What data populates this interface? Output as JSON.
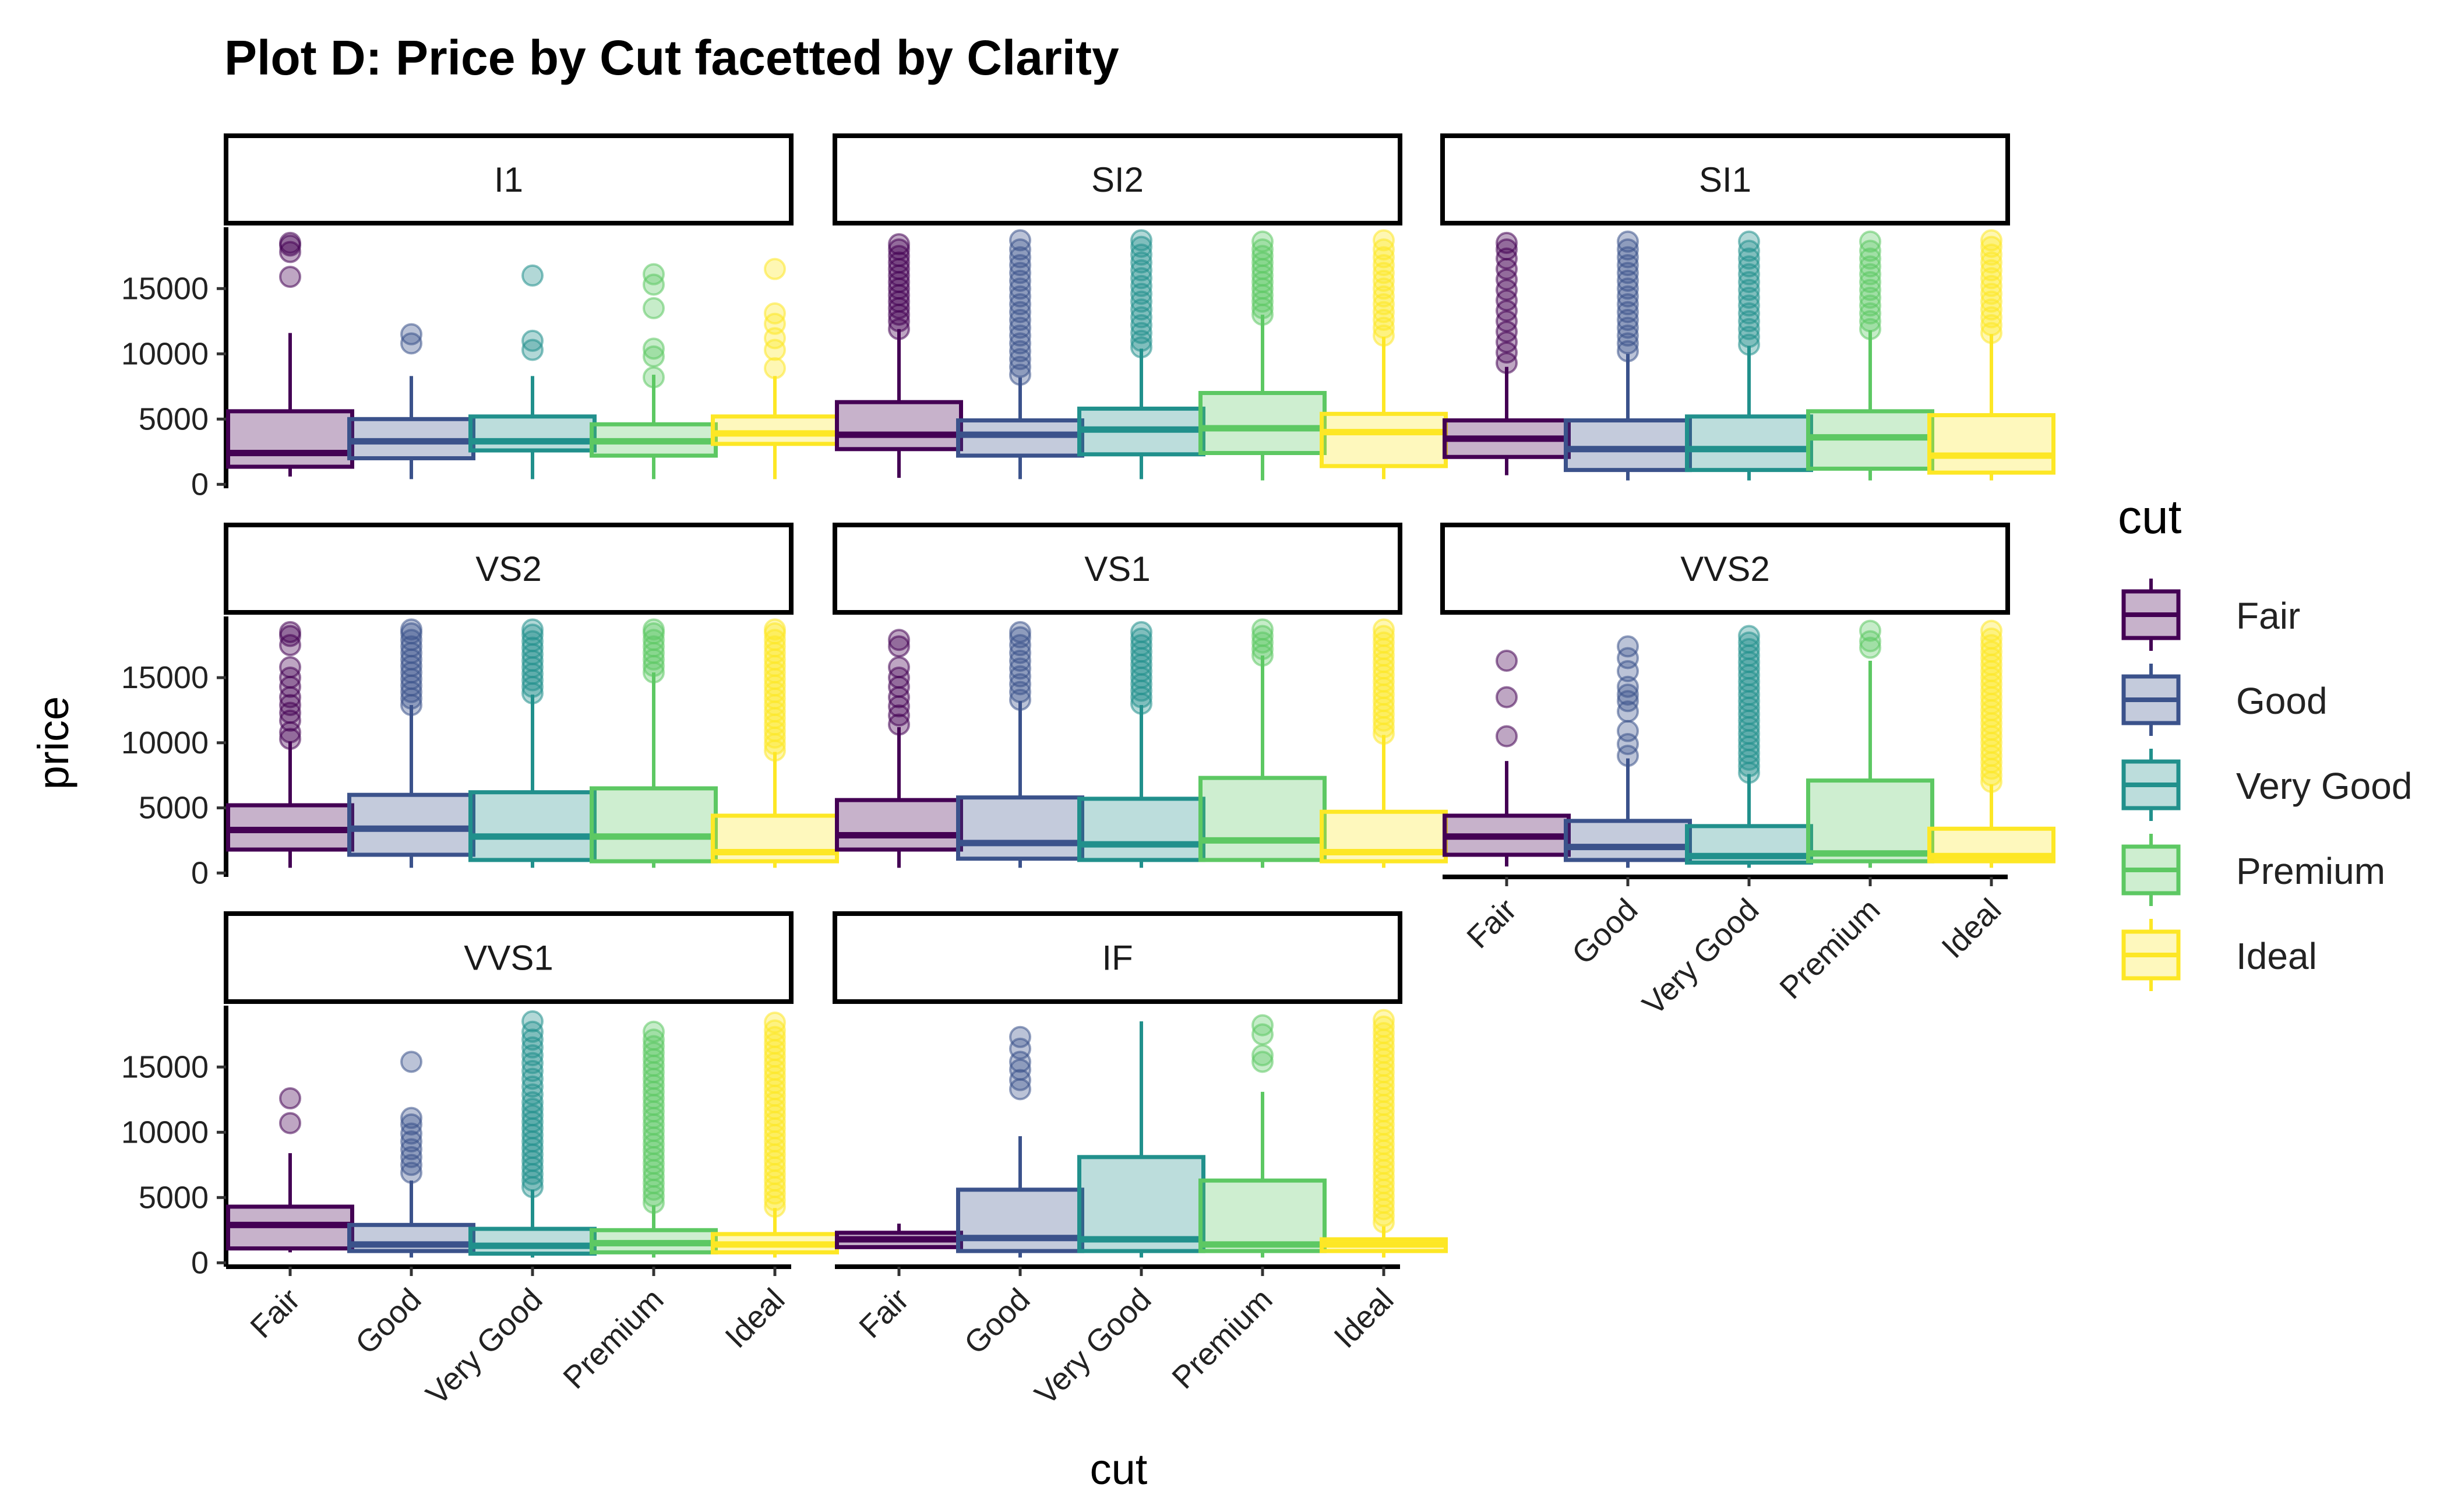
{
  "chart_data": {
    "type": "boxplot",
    "title": "Plot D: Price by Cut facetted by Clarity",
    "xlabel": "cut",
    "ylabel": "price",
    "categories": [
      "Fair",
      "Good",
      "Very Good",
      "Premium",
      "Ideal"
    ],
    "y_ticks": [
      0,
      5000,
      10000,
      15000
    ],
    "ylim": [
      -300,
      19700
    ],
    "legend": {
      "title": "cut",
      "position": "right",
      "entries": [
        "Fair",
        "Good",
        "Very Good",
        "Premium",
        "Ideal"
      ]
    },
    "colors": {
      "Fair": "#440154",
      "Good": "#3b528b",
      "Very Good": "#21908c",
      "Premium": "#5dc863",
      "Ideal": "#fde725"
    },
    "facets": [
      {
        "label": "I1",
        "boxes": [
          {
            "cut": "Fair",
            "min": 600,
            "q1": 1350,
            "median": 2400,
            "q3": 5600,
            "max": 11600,
            "outliers": [
              15900,
              17800,
              18300,
              18500
            ]
          },
          {
            "cut": "Good",
            "min": 400,
            "q1": 2000,
            "median": 3300,
            "q3": 5000,
            "max": 8300,
            "outliers": [
              10800,
              11500
            ]
          },
          {
            "cut": "Very Good",
            "min": 400,
            "q1": 2600,
            "median": 3300,
            "q3": 5200,
            "max": 8300,
            "outliers": [
              10300,
              11000,
              16000
            ]
          },
          {
            "cut": "Premium",
            "min": 400,
            "q1": 2200,
            "median": 3300,
            "q3": 4600,
            "max": 8400,
            "outliers": [
              8200,
              9800,
              10400,
              13500,
              15300,
              16100
            ]
          },
          {
            "cut": "Ideal",
            "min": 400,
            "q1": 3100,
            "median": 3900,
            "q3": 5200,
            "max": 8300,
            "outliers": [
              8900,
              10300,
              11200,
              12300,
              13100,
              16500
            ]
          }
        ]
      },
      {
        "label": "SI2",
        "boxes": [
          {
            "cut": "Fair",
            "min": 500,
            "q1": 2700,
            "median": 3800,
            "q3": 6300,
            "max": 11900,
            "outliers": [
              11900,
              12500,
              13000,
              13500,
              14000,
              14500,
              15000,
              15500,
              16000,
              16500,
              17000,
              17500,
              18000,
              18400
            ]
          },
          {
            "cut": "Good",
            "min": 400,
            "q1": 2200,
            "median": 3800,
            "q3": 4900,
            "max": 8200,
            "outliers": [
              8400,
              9000,
              9600,
              10200,
              10800,
              11400,
              12000,
              12600,
              13200,
              13800,
              14400,
              15000,
              15600,
              16200,
              16800,
              17400,
              18000,
              18700
            ]
          },
          {
            "cut": "Very Good",
            "min": 400,
            "q1": 2300,
            "median": 4200,
            "q3": 5800,
            "max": 10400,
            "outliers": [
              10500,
              11000,
              11600,
              12200,
              12800,
              13400,
              14000,
              14600,
              15200,
              15800,
              16400,
              17000,
              17600,
              18200,
              18700
            ]
          },
          {
            "cut": "Premium",
            "min": 300,
            "q1": 2400,
            "median": 4300,
            "q3": 7000,
            "max": 13000,
            "outliers": [
              13000,
              13500,
              14000,
              14500,
              15000,
              15500,
              16000,
              16500,
              17000,
              17500,
              18000,
              18600
            ]
          },
          {
            "cut": "Ideal",
            "min": 400,
            "q1": 1400,
            "median": 4000,
            "q3": 5400,
            "max": 11300,
            "outliers": [
              11400,
              12000,
              12600,
              13200,
              13800,
              14400,
              15000,
              15600,
              16200,
              16800,
              17400,
              18000,
              18700
            ]
          }
        ]
      },
      {
        "label": "SI1",
        "boxes": [
          {
            "cut": "Fair",
            "min": 700,
            "q1": 2100,
            "median": 3500,
            "q3": 4900,
            "max": 9000,
            "outliers": [
              9300,
              10100,
              10900,
              11700,
              12500,
              13300,
              14100,
              14900,
              15700,
              16500,
              17300,
              18000,
              18500
            ]
          },
          {
            "cut": "Good",
            "min": 300,
            "q1": 1100,
            "median": 2700,
            "q3": 4900,
            "max": 10000,
            "outliers": [
              10200,
              10800,
              11400,
              12000,
              12600,
              13200,
              13800,
              14400,
              15000,
              15600,
              16200,
              16800,
              17400,
              18000,
              18600
            ]
          },
          {
            "cut": "Very Good",
            "min": 300,
            "q1": 1100,
            "median": 2700,
            "q3": 5200,
            "max": 10600,
            "outliers": [
              10700,
              11300,
              11900,
              12500,
              13100,
              13700,
              14300,
              14900,
              15500,
              16100,
              16700,
              17300,
              17900,
              18600
            ]
          },
          {
            "cut": "Premium",
            "min": 300,
            "q1": 1200,
            "median": 3600,
            "q3": 5600,
            "max": 11800,
            "outliers": [
              11900,
              12500,
              13100,
              13700,
              14300,
              14900,
              15500,
              16100,
              16700,
              17300,
              17900,
              18600
            ]
          },
          {
            "cut": "Ideal",
            "min": 300,
            "q1": 900,
            "median": 2200,
            "q3": 5300,
            "max": 11500,
            "outliers": [
              11600,
              12200,
              12800,
              13400,
              14000,
              14600,
              15200,
              15800,
              16400,
              17000,
              17600,
              18200,
              18700
            ]
          }
        ]
      },
      {
        "label": "VS2",
        "boxes": [
          {
            "cut": "Fair",
            "min": 400,
            "q1": 1800,
            "median": 3300,
            "q3": 5200,
            "max": 10100,
            "outliers": [
              10300,
              10800,
              11700,
              12300,
              12900,
              13500,
              14300,
              15000,
              15800,
              17500,
              18200,
              18500
            ]
          },
          {
            "cut": "Good",
            "min": 400,
            "q1": 1400,
            "median": 3400,
            "q3": 6000,
            "max": 12900,
            "outliers": [
              12900,
              13400,
              13900,
              14400,
              14900,
              15400,
              15900,
              16400,
              16900,
              17400,
              17900,
              18400,
              18700
            ]
          },
          {
            "cut": "Very Good",
            "min": 400,
            "q1": 1000,
            "median": 2800,
            "q3": 6200,
            "max": 13700,
            "outliers": [
              13800,
              14300,
              14800,
              15300,
              15800,
              16300,
              16800,
              17300,
              17800,
              18300,
              18700
            ]
          },
          {
            "cut": "Premium",
            "min": 400,
            "q1": 900,
            "median": 2800,
            "q3": 6500,
            "max": 15400,
            "outliers": [
              15400,
              15900,
              16400,
              16900,
              17400,
              17900,
              18400,
              18700
            ]
          },
          {
            "cut": "Ideal",
            "min": 400,
            "q1": 900,
            "median": 1600,
            "q3": 4400,
            "max": 9300,
            "outliers": [
              9400,
              9900,
              10400,
              10900,
              11400,
              11900,
              12400,
              12900,
              13400,
              13900,
              14400,
              14900,
              15400,
              15900,
              16400,
              16900,
              17400,
              17900,
              18400,
              18700
            ]
          }
        ]
      },
      {
        "label": "VS1",
        "boxes": [
          {
            "cut": "Fair",
            "min": 400,
            "q1": 1800,
            "median": 2900,
            "q3": 5600,
            "max": 11200,
            "outliers": [
              11400,
              12100,
              12800,
              13500,
              14300,
              15000,
              15800,
              17400,
              17900
            ]
          },
          {
            "cut": "Good",
            "min": 400,
            "q1": 1100,
            "median": 2300,
            "q3": 5800,
            "max": 13200,
            "outliers": [
              13300,
              13900,
              14500,
              15100,
              15700,
              16300,
              16900,
              17500,
              18100,
              18500
            ]
          },
          {
            "cut": "Very Good",
            "min": 400,
            "q1": 1000,
            "median": 2200,
            "q3": 5700,
            "max": 12900,
            "outliers": [
              13000,
              13500,
              14000,
              14500,
              15000,
              15500,
              16000,
              16500,
              17000,
              17500,
              18000,
              18500
            ]
          },
          {
            "cut": "Premium",
            "min": 400,
            "q1": 1000,
            "median": 2500,
            "q3": 7300,
            "max": 16700,
            "outliers": [
              16700,
              17200,
              17700,
              18200,
              18700
            ]
          },
          {
            "cut": "Ideal",
            "min": 400,
            "q1": 900,
            "median": 1600,
            "q3": 4700,
            "max": 10600,
            "outliers": [
              10700,
              11200,
              11700,
              12200,
              12700,
              13200,
              13700,
              14200,
              14700,
              15200,
              15700,
              16200,
              16700,
              17200,
              17700,
              18200,
              18700
            ]
          }
        ]
      },
      {
        "label": "VVS2",
        "boxes": [
          {
            "cut": "Fair",
            "min": 500,
            "q1": 1400,
            "median": 2800,
            "q3": 4400,
            "max": 8600,
            "outliers": [
              10500,
              13500,
              16300
            ]
          },
          {
            "cut": "Good",
            "min": 400,
            "q1": 1000,
            "median": 2000,
            "q3": 4000,
            "max": 8800,
            "outliers": [
              9000,
              9900,
              10900,
              12400,
              13200,
              13700,
              14300,
              15500,
              16500,
              17400
            ]
          },
          {
            "cut": "Very Good",
            "min": 400,
            "q1": 800,
            "median": 1300,
            "q3": 3600,
            "max": 7600,
            "outliers": [
              7700,
              8200,
              8700,
              9200,
              9700,
              10200,
              10700,
              11200,
              11700,
              12200,
              12700,
              13200,
              13700,
              14200,
              14700,
              15200,
              15700,
              16200,
              16700,
              17200,
              17700,
              18200
            ]
          },
          {
            "cut": "Premium",
            "min": 400,
            "q1": 900,
            "median": 1500,
            "q3": 7100,
            "max": 16300,
            "outliers": [
              17300,
              17800,
              18600
            ]
          },
          {
            "cut": "Ideal",
            "min": 400,
            "q1": 900,
            "median": 1300,
            "q3": 3400,
            "max": 6800,
            "outliers": [
              7000,
              7500,
              8000,
              8500,
              9000,
              9500,
              10000,
              10500,
              11000,
              11500,
              12000,
              12500,
              13000,
              13500,
              14000,
              14500,
              15000,
              15500,
              16000,
              16500,
              17000,
              17500,
              18000,
              18600
            ]
          }
        ]
      },
      {
        "label": "VVS1",
        "boxes": [
          {
            "cut": "Fair",
            "min": 800,
            "q1": 1100,
            "median": 2900,
            "q3": 4300,
            "max": 8400,
            "outliers": [
              10700,
              12600
            ]
          },
          {
            "cut": "Good",
            "min": 400,
            "q1": 900,
            "median": 1400,
            "q3": 2900,
            "max": 6300,
            "outliers": [
              6900,
              7500,
              8100,
              8700,
              9300,
              9900,
              10600,
              11100,
              15400
            ]
          },
          {
            "cut": "Very Good",
            "min": 400,
            "q1": 700,
            "median": 1300,
            "q3": 2600,
            "max": 5600,
            "outliers": [
              5800,
              6300,
              6800,
              7300,
              7800,
              8300,
              8800,
              9300,
              9800,
              10300,
              10800,
              11300,
              11800,
              12300,
              12900,
              13500,
              14100,
              14700,
              15300,
              15900,
              16500,
              17100,
              17700,
              18500
            ]
          },
          {
            "cut": "Premium",
            "min": 400,
            "q1": 800,
            "median": 1500,
            "q3": 2500,
            "max": 4400,
            "outliers": [
              4600,
              5100,
              5600,
              6100,
              6600,
              7100,
              7600,
              8100,
              8600,
              9100,
              9600,
              10100,
              10600,
              11100,
              11600,
              12100,
              12600,
              13100,
              13600,
              14100,
              14600,
              15100,
              15600,
              16100,
              16600,
              17100,
              17700
            ]
          },
          {
            "cut": "Ideal",
            "min": 400,
            "q1": 800,
            "median": 1400,
            "q3": 2200,
            "max": 4200,
            "outliers": [
              4300,
              4800,
              5300,
              5800,
              6300,
              6800,
              7300,
              7800,
              8300,
              8800,
              9300,
              9800,
              10300,
              10800,
              11300,
              11800,
              12300,
              12800,
              13300,
              13800,
              14300,
              14800,
              15300,
              15800,
              16300,
              16800,
              17300,
              17800,
              18400
            ]
          }
        ]
      },
      {
        "label": "IF",
        "boxes": [
          {
            "cut": "Fair",
            "min": 1200,
            "q1": 1200,
            "median": 1800,
            "q3": 2300,
            "max": 3000,
            "outliers": []
          },
          {
            "cut": "Good",
            "min": 400,
            "q1": 900,
            "median": 1900,
            "q3": 5600,
            "max": 9700,
            "outliers": [
              13300,
              14000,
              14800,
              15400,
              16400,
              17300
            ]
          },
          {
            "cut": "Very Good",
            "min": 400,
            "q1": 900,
            "median": 1800,
            "q3": 8100,
            "max": 18500,
            "outliers": []
          },
          {
            "cut": "Premium",
            "min": 400,
            "q1": 900,
            "median": 1400,
            "q3": 6300,
            "max": 13100,
            "outliers": [
              15400,
              15900,
              17500,
              18200
            ]
          },
          {
            "cut": "Ideal",
            "min": 400,
            "q1": 900,
            "median": 1400,
            "q3": 1800,
            "max": 2800,
            "outliers": [
              3100,
              3600,
              4100,
              4600,
              5100,
              5600,
              6100,
              6600,
              7100,
              7600,
              8100,
              8600,
              9100,
              9600,
              10100,
              10600,
              11100,
              11600,
              12100,
              12600,
              13100,
              13600,
              14100,
              14600,
              15100,
              15600,
              16100,
              16600,
              17100,
              17600,
              18100,
              18600
            ]
          }
        ]
      }
    ]
  }
}
